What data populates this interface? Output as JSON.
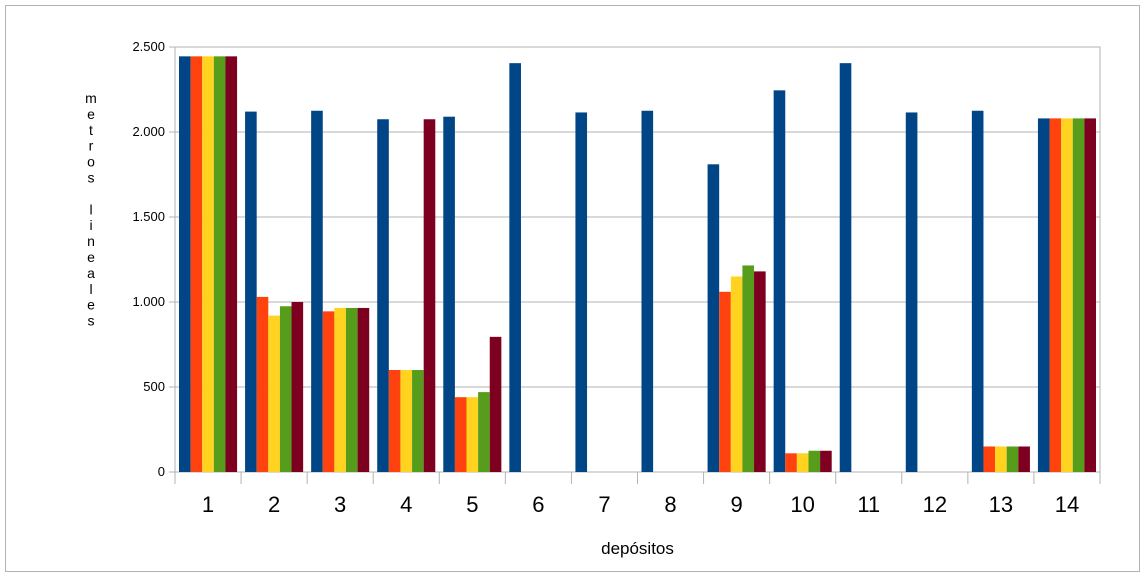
{
  "chart_data": {
    "type": "bar",
    "xlabel": "depósitos",
    "ylabel": "metros lineales",
    "categories": [
      "1",
      "2",
      "3",
      "4",
      "5",
      "6",
      "7",
      "8",
      "9",
      "10",
      "11",
      "12",
      "13",
      "14"
    ],
    "ylim": [
      0,
      2500
    ],
    "yticks": [
      0,
      500,
      1000,
      1500,
      2000,
      2500
    ],
    "ytick_labels": [
      "0",
      "500",
      "1.000",
      "1.500",
      "2.000",
      "2.500"
    ],
    "grid": true,
    "legend": "none",
    "series": [
      {
        "color": "#004586",
        "values": [
          2445,
          2120,
          2125,
          2075,
          2090,
          2405,
          2115,
          2125,
          1810,
          2245,
          2405,
          2115,
          2125,
          2080
        ]
      },
      {
        "color": "#ff420e",
        "values": [
          2445,
          1030,
          945,
          600,
          440,
          0,
          0,
          0,
          1060,
          110,
          0,
          0,
          150,
          2080
        ]
      },
      {
        "color": "#ffd320",
        "values": [
          2445,
          920,
          965,
          600,
          440,
          0,
          0,
          0,
          1150,
          110,
          0,
          0,
          150,
          2080
        ]
      },
      {
        "color": "#579d1c",
        "values": [
          2445,
          975,
          965,
          600,
          470,
          0,
          0,
          0,
          1215,
          125,
          0,
          0,
          150,
          2080
        ]
      },
      {
        "color": "#7e0021",
        "values": [
          2445,
          1000,
          965,
          2075,
          795,
          0,
          0,
          0,
          1180,
          125,
          0,
          0,
          150,
          2080
        ]
      }
    ]
  }
}
